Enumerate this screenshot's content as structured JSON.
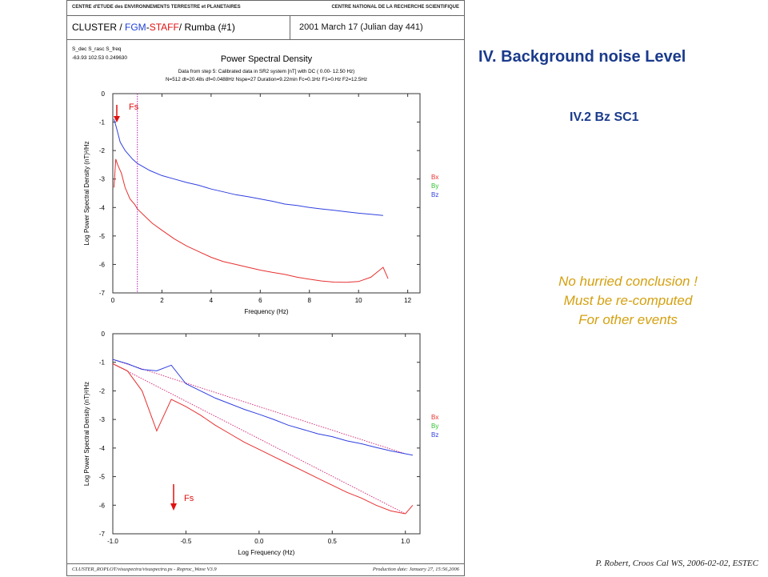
{
  "slide": {
    "title": "IV. Background noise Level",
    "subtitle": "IV.2 Bz SC1",
    "note_lines": [
      "No hurried conclusion !",
      "Must be re-computed",
      "For other events"
    ],
    "credit": "P. Robert, Croos Cal WS, 2006-02-02, ESTEC",
    "colors": {
      "title": "#1a3a8c",
      "note": "#d4a010"
    }
  },
  "plot_page": {
    "header_left": "CENTRE d'ETUDE des ENVIRONNEMENTS TERRESTRE et PLANETAIRES",
    "header_right": "CENTRE NATIONAL DE LA RECHERCHE SCIENTIFIQUE",
    "mission_parts": [
      "CLUSTER / ",
      "FGM",
      "-",
      "STAFF",
      "/ Rumba  (#1)"
    ],
    "date": "2001 March 17  (Julian day 441)",
    "param_names": "S_dec    S_rasc    S_freq",
    "param_values": "-63.93   102.53   0.249630",
    "footer_left": "CLUSTER_ROPLOT/visuspectra/visuspectra.ps  -  Roproc_Wave V3.9",
    "footer_right": "Production date: January 27, 15:56,2006"
  },
  "chart_data": [
    {
      "type": "line",
      "title": "Power Spectral Density",
      "info_lines": [
        "Data from step 5: Calibrated data in SR2 system [nT] with DC  (  0.00-  12.50 Hz)",
        "N=512 dt=20.48s df=0.0488Hz Nspe=27 Duration=9.22min Fc=0.1Hz F1=0.Hz F2=12.5Hz"
      ],
      "xlabel": "Frequency (Hz)",
      "ylabel": "Log Power Spectral Density (nT)²/Hz",
      "xlim": [
        0,
        12.5
      ],
      "ylim": [
        -7,
        0
      ],
      "xticks": [
        "0",
        "2",
        "4",
        "6",
        "8",
        "10",
        "12"
      ],
      "yticks": [
        "0",
        "-1",
        "-2",
        "-3",
        "-4",
        "-5",
        "-6",
        "-7"
      ],
      "legend": [
        "Bx",
        "By",
        "Bz"
      ],
      "legend_colors": [
        "#e83030",
        "#30c030",
        "#3040e0"
      ],
      "marker_label": "Fs",
      "marker_x": 1.0,
      "series": [
        {
          "name": "Bz",
          "color": "#3040e0",
          "points": [
            [
              0.05,
              -0.9
            ],
            [
              0.15,
              -1.2
            ],
            [
              0.3,
              -1.7
            ],
            [
              0.5,
              -2.0
            ],
            [
              0.8,
              -2.3
            ],
            [
              1.0,
              -2.45
            ],
            [
              1.5,
              -2.7
            ],
            [
              2.0,
              -2.88
            ],
            [
              2.5,
              -3.0
            ],
            [
              3.0,
              -3.12
            ],
            [
              3.5,
              -3.22
            ],
            [
              4.0,
              -3.35
            ],
            [
              4.5,
              -3.45
            ],
            [
              5.0,
              -3.55
            ],
            [
              5.5,
              -3.62
            ],
            [
              6.0,
              -3.7
            ],
            [
              6.5,
              -3.78
            ],
            [
              7.0,
              -3.88
            ],
            [
              7.5,
              -3.93
            ],
            [
              8.0,
              -4.0
            ],
            [
              8.5,
              -4.05
            ],
            [
              9.0,
              -4.1
            ],
            [
              9.5,
              -4.15
            ],
            [
              10.0,
              -4.2
            ],
            [
              10.5,
              -4.24
            ],
            [
              11.0,
              -4.28
            ]
          ]
        },
        {
          "name": "Bx",
          "color": "#e83030",
          "points": [
            [
              0.05,
              -3.3
            ],
            [
              0.12,
              -2.3
            ],
            [
              0.2,
              -2.5
            ],
            [
              0.35,
              -2.8
            ],
            [
              0.5,
              -3.3
            ],
            [
              0.7,
              -3.7
            ],
            [
              0.9,
              -3.9
            ],
            [
              1.0,
              -4.05
            ],
            [
              1.3,
              -4.3
            ],
            [
              1.6,
              -4.55
            ],
            [
              2.0,
              -4.8
            ],
            [
              2.5,
              -5.1
            ],
            [
              3.0,
              -5.35
            ],
            [
              3.5,
              -5.55
            ],
            [
              4.0,
              -5.75
            ],
            [
              4.5,
              -5.9
            ],
            [
              5.0,
              -6.0
            ],
            [
              5.5,
              -6.1
            ],
            [
              6.0,
              -6.2
            ],
            [
              6.5,
              -6.28
            ],
            [
              7.0,
              -6.35
            ],
            [
              7.5,
              -6.45
            ],
            [
              8.0,
              -6.52
            ],
            [
              8.5,
              -6.58
            ],
            [
              9.0,
              -6.62
            ],
            [
              9.5,
              -6.63
            ],
            [
              10.0,
              -6.6
            ],
            [
              10.5,
              -6.45
            ],
            [
              11.0,
              -6.1
            ],
            [
              11.2,
              -6.5
            ]
          ]
        }
      ]
    },
    {
      "type": "line",
      "xlabel": "Log Frequency (Hz)",
      "ylabel": "Log Power Spectral Density (nT)²/Hz",
      "xlim": [
        -1.0,
        1.1
      ],
      "ylim": [
        -7,
        0
      ],
      "xticks": [
        "-1.0",
        "-0.5",
        "0.0",
        "0.5",
        "1.0"
      ],
      "yticks": [
        "0",
        "-1",
        "-2",
        "-3",
        "-4",
        "-5",
        "-6",
        "-7"
      ],
      "legend": [
        "Bx",
        "By",
        "Bz"
      ],
      "legend_colors": [
        "#e83030",
        "#30c030",
        "#3040e0"
      ],
      "marker_label": "Fs",
      "series": [
        {
          "name": "Bz",
          "color": "#3040e0",
          "points": [
            [
              -1.0,
              -0.9
            ],
            [
              -0.9,
              -1.05
            ],
            [
              -0.8,
              -1.25
            ],
            [
              -0.7,
              -1.3
            ],
            [
              -0.6,
              -1.1
            ],
            [
              -0.5,
              -1.75
            ],
            [
              -0.4,
              -2.0
            ],
            [
              -0.3,
              -2.25
            ],
            [
              -0.2,
              -2.45
            ],
            [
              -0.1,
              -2.65
            ],
            [
              0.0,
              -2.82
            ],
            [
              0.1,
              -3.0
            ],
            [
              0.2,
              -3.2
            ],
            [
              0.3,
              -3.35
            ],
            [
              0.4,
              -3.5
            ],
            [
              0.5,
              -3.6
            ],
            [
              0.6,
              -3.75
            ],
            [
              0.7,
              -3.85
            ],
            [
              0.8,
              -3.98
            ],
            [
              0.9,
              -4.1
            ],
            [
              1.0,
              -4.2
            ],
            [
              1.05,
              -4.25
            ]
          ]
        },
        {
          "name": "Bx",
          "color": "#e83030",
          "points": [
            [
              -1.0,
              -1.05
            ],
            [
              -0.9,
              -1.3
            ],
            [
              -0.8,
              -2.0
            ],
            [
              -0.7,
              -3.4
            ],
            [
              -0.6,
              -2.3
            ],
            [
              -0.5,
              -2.55
            ],
            [
              -0.4,
              -2.85
            ],
            [
              -0.3,
              -3.2
            ],
            [
              -0.2,
              -3.5
            ],
            [
              -0.1,
              -3.8
            ],
            [
              0.0,
              -4.05
            ],
            [
              0.1,
              -4.3
            ],
            [
              0.2,
              -4.55
            ],
            [
              0.3,
              -4.8
            ],
            [
              0.4,
              -5.05
            ],
            [
              0.5,
              -5.3
            ],
            [
              0.6,
              -5.55
            ],
            [
              0.7,
              -5.75
            ],
            [
              0.8,
              -6.0
            ],
            [
              0.9,
              -6.2
            ],
            [
              1.0,
              -6.3
            ],
            [
              1.05,
              -6.0
            ]
          ]
        }
      ]
    }
  ]
}
